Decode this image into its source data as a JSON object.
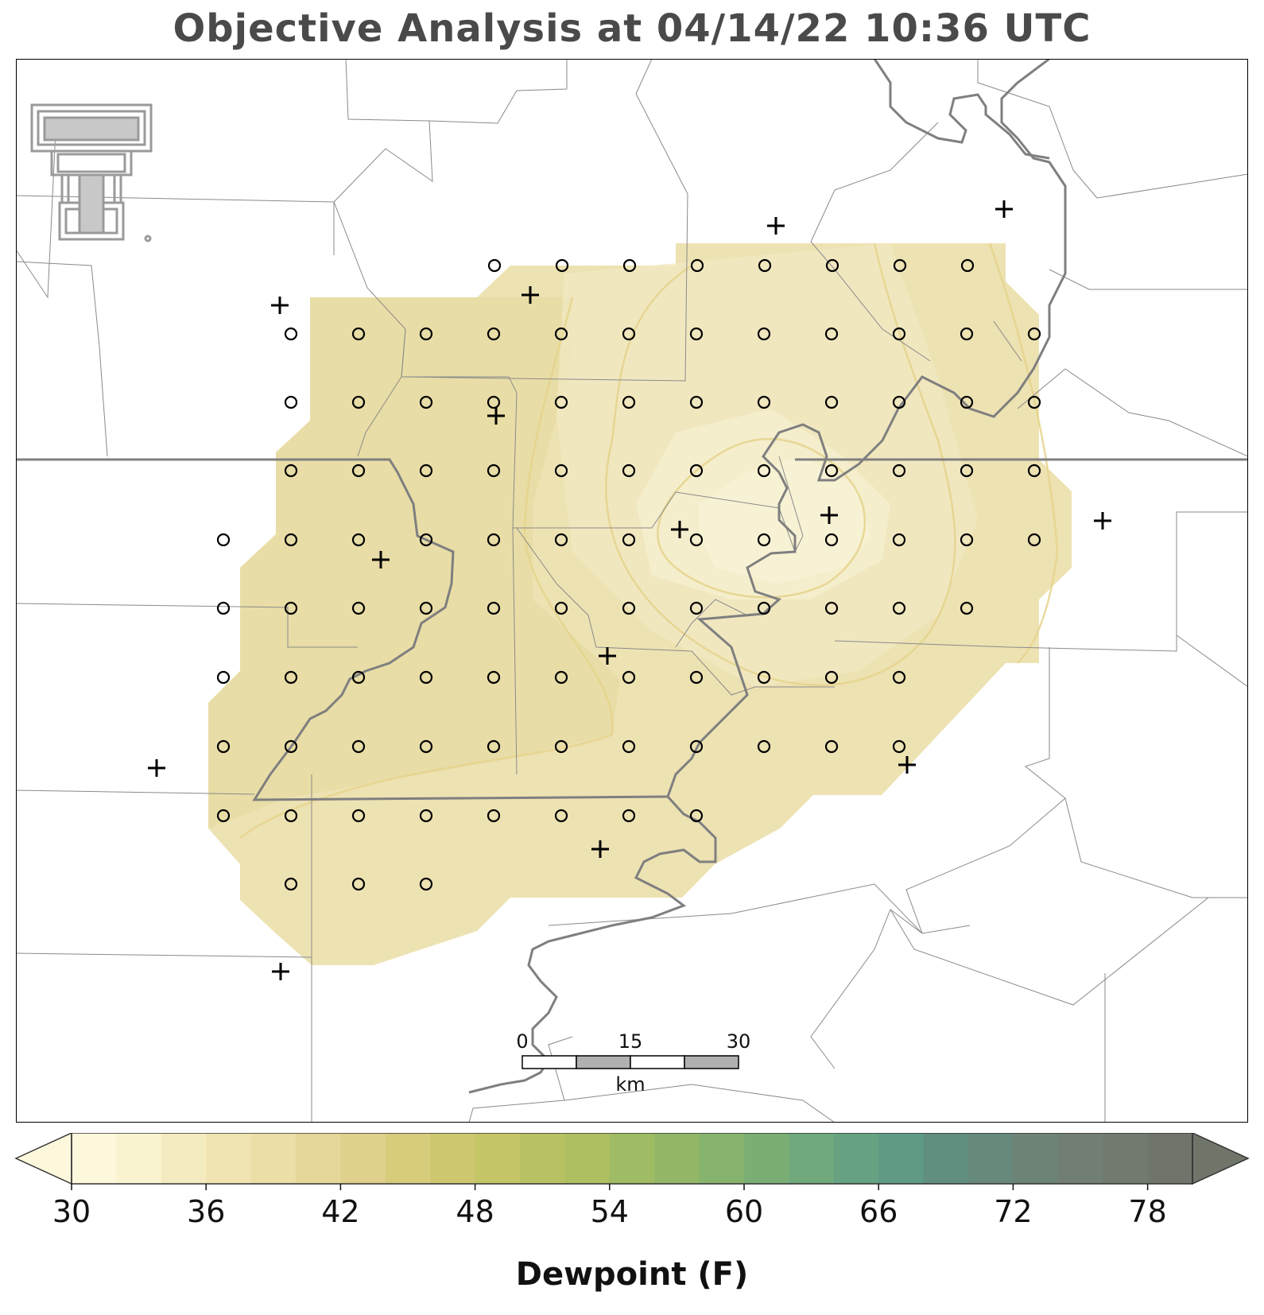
{
  "title": "Objective Analysis at 04/14/22 10:36 UTC",
  "colorbar": {
    "label": "Dewpoint (F)",
    "ticks": [
      "30",
      "36",
      "42",
      "48",
      "54",
      "60",
      "66",
      "72",
      "78"
    ],
    "colors": [
      "#fdf8dc",
      "#faf3cf",
      "#f5ebc0",
      "#f0e4b2",
      "#ebdea6",
      "#e5d799",
      "#dfd08b",
      "#d7cb7c",
      "#cdc86f",
      "#c4c566",
      "#b9c262",
      "#acbf61",
      "#9fbb63",
      "#93b767",
      "#86b46d",
      "#7aae74",
      "#70a97b",
      "#66a281",
      "#5f9b84",
      "#618f7f",
      "#67897b",
      "#6d8376",
      "#717e73",
      "#727a70",
      "#70756c"
    ],
    "extend_low_color": "#fdf8dc",
    "extend_high_color": "#6f7568"
  },
  "scale_bar": {
    "labels": [
      "0",
      "15",
      "30"
    ],
    "unit": "km"
  },
  "legend_marks": {
    "grid_point": "circle",
    "station": "plus"
  }
}
